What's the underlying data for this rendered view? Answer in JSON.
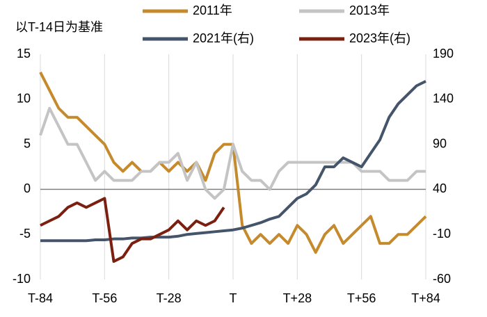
{
  "chart_data": {
    "type": "line",
    "annotation": "以T-14日为基准",
    "x": [
      -84,
      -80,
      -76,
      -72,
      -68,
      -64,
      -60,
      -56,
      -52,
      -48,
      -44,
      -40,
      -36,
      -32,
      -28,
      -24,
      -20,
      -16,
      -12,
      -8,
      -4,
      0,
      4,
      8,
      12,
      16,
      20,
      24,
      28,
      32,
      36,
      40,
      44,
      48,
      52,
      56,
      60,
      64,
      68,
      72,
      76,
      80,
      84
    ],
    "series": [
      {
        "name": "2011年",
        "color": "#c48a2c",
        "values": [
          13,
          11,
          9,
          8,
          8,
          7,
          6,
          5,
          3,
          2,
          3,
          2,
          2,
          3,
          2,
          3,
          2,
          3,
          1,
          4,
          5,
          5,
          -4,
          -6,
          -5,
          -6,
          -5,
          -6,
          -4,
          -5,
          -7,
          -5,
          -4,
          -6,
          -5,
          -4,
          -3,
          -6,
          -6,
          -5,
          -5,
          -4,
          -3
        ]
      },
      {
        "name": "2013年",
        "color": "#c4c4c4",
        "values": [
          6,
          9,
          7,
          5,
          5,
          3,
          1,
          2,
          1,
          1,
          1,
          2,
          2,
          3,
          3,
          4,
          1,
          3,
          0,
          -1,
          0,
          5,
          2,
          1,
          1,
          0,
          2,
          3,
          3,
          3,
          3,
          3,
          3,
          3,
          3,
          2,
          2,
          2,
          1,
          1,
          1,
          2,
          2
        ]
      },
      {
        "name": "2021年(右)",
        "color": "#44546a",
        "axis": "y2",
        "values": [
          -17,
          -17,
          -17,
          -17,
          -17,
          -17,
          -16,
          -16,
          -15,
          -15,
          -14,
          -14,
          -13,
          -13,
          -13,
          -12,
          -10,
          -9,
          -8,
          -7,
          -6,
          -5,
          -3,
          0,
          3,
          7,
          10,
          20,
          30,
          35,
          45,
          65,
          65,
          75,
          70,
          65,
          80,
          95,
          120,
          135,
          145,
          155,
          160
        ]
      },
      {
        "name": "2023年(右)",
        "color": "#7b2010",
        "axis": "y2",
        "values": [
          0,
          5,
          10,
          20,
          25,
          20,
          25,
          30,
          -40,
          -35,
          -20,
          -15,
          -15,
          -10,
          -5,
          5,
          -5,
          5,
          0,
          5,
          20,
          null,
          null,
          null,
          null,
          null,
          null,
          null,
          null,
          null,
          null,
          null,
          null,
          null,
          null,
          null,
          null,
          null,
          null,
          null,
          null,
          null,
          null
        ]
      }
    ],
    "xlim": [
      -84,
      84
    ],
    "xticks": [
      {
        "value": -84,
        "label": "T-84"
      },
      {
        "value": -56,
        "label": "T-56"
      },
      {
        "value": -28,
        "label": "T-28"
      },
      {
        "value": 0,
        "label": "T"
      },
      {
        "value": 28,
        "label": "T+28"
      },
      {
        "value": 56,
        "label": "T+56"
      },
      {
        "value": 84,
        "label": "T+84"
      }
    ],
    "ylim": [
      -10,
      15
    ],
    "yticks": [
      -10,
      -5,
      0,
      5,
      10,
      15
    ],
    "y2lim": [
      -60,
      190
    ],
    "y2ticks": [
      -60,
      -10,
      40,
      90,
      140,
      190
    ],
    "grid": "x"
  }
}
